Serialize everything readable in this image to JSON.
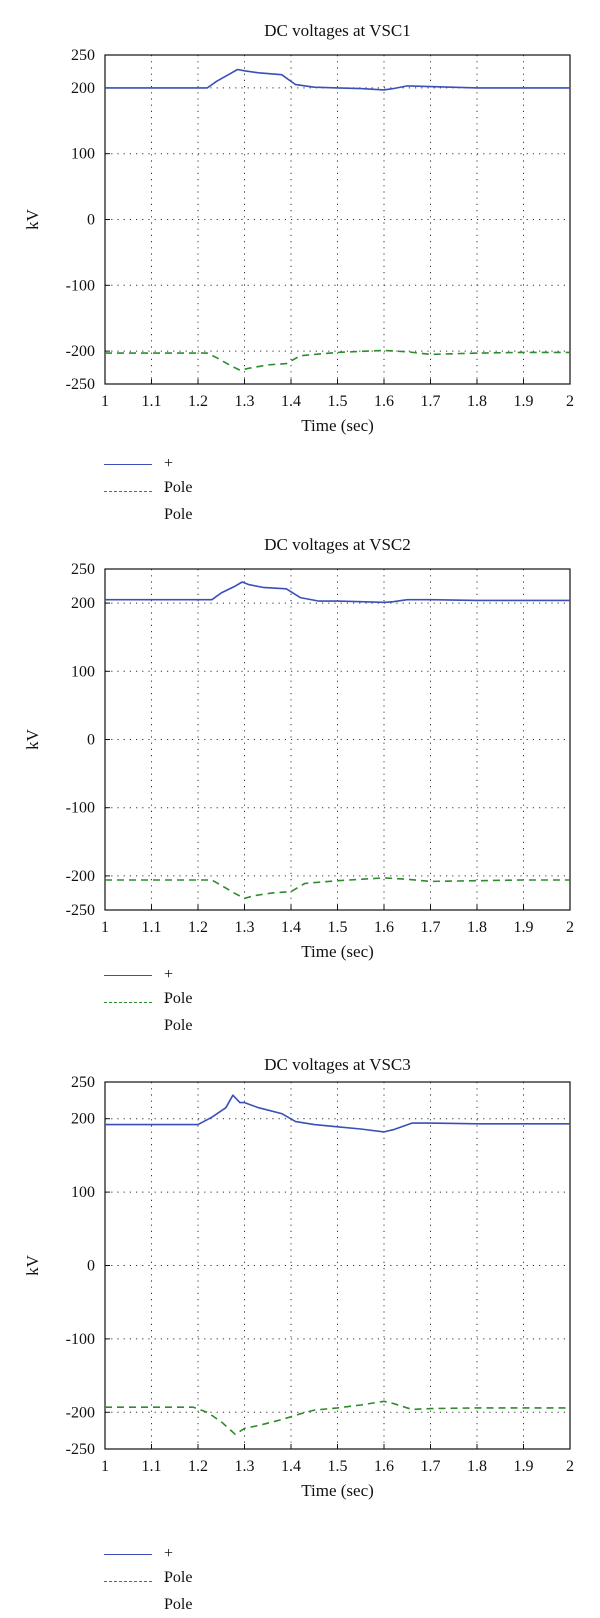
{
  "chart_data": [
    {
      "type": "line",
      "title": "DC voltages at VSC1",
      "xlabel": "Time (sec)",
      "ylabel": "kV",
      "xlim": [
        1,
        2
      ],
      "ylim": [
        -250,
        250
      ],
      "xticks": [
        "1",
        "1.1",
        "1.2",
        "1.3",
        "1.4",
        "1.5",
        "1.6",
        "1.7",
        "1.8",
        "1.9",
        "2"
      ],
      "yticks": [
        "250",
        "200",
        "100",
        "0",
        "-100",
        "-200",
        "-250"
      ],
      "grid": true,
      "legend_position": "below",
      "series": [
        {
          "name": "+ Pole",
          "color": "#3b4fb8",
          "style": "solid",
          "x": [
            1.0,
            1.22,
            1.24,
            1.27,
            1.285,
            1.3,
            1.33,
            1.38,
            1.41,
            1.45,
            1.5,
            1.55,
            1.6,
            1.62,
            1.65,
            1.7,
            1.8,
            1.9,
            2.0
          ],
          "y": [
            200,
            200,
            210,
            222,
            228,
            226,
            223,
            220,
            205,
            201,
            200,
            199,
            197,
            199,
            203,
            202,
            200,
            200,
            200
          ]
        },
        {
          "name": "- Pole",
          "color": "#2e8b2e",
          "style": "dashed",
          "x": [
            1.0,
            1.22,
            1.24,
            1.27,
            1.29,
            1.31,
            1.35,
            1.39,
            1.42,
            1.5,
            1.6,
            1.65,
            1.7,
            1.8,
            1.9,
            2.0
          ],
          "y": [
            -203,
            -203,
            -210,
            -222,
            -229,
            -226,
            -221,
            -219,
            -207,
            -202,
            -199,
            -201,
            -205,
            -203,
            -202,
            -202
          ]
        }
      ]
    },
    {
      "type": "line",
      "title": "DC voltages at VSC2",
      "xlabel": "Time (sec)",
      "ylabel": "kV",
      "xlim": [
        1,
        2
      ],
      "ylim": [
        -250,
        250
      ],
      "xticks": [
        "1",
        "1.1",
        "1.2",
        "1.3",
        "1.4",
        "1.5",
        "1.6",
        "1.7",
        "1.8",
        "1.9",
        "2"
      ],
      "yticks": [
        "250",
        "200",
        "100",
        "0",
        "-100",
        "-200",
        "-250"
      ],
      "grid": true,
      "legend_position": "below",
      "series": [
        {
          "name": "+ Pole",
          "color": "#3b4fb8",
          "style": "solid",
          "x": [
            1.0,
            1.23,
            1.25,
            1.28,
            1.295,
            1.31,
            1.34,
            1.39,
            1.42,
            1.46,
            1.5,
            1.55,
            1.6,
            1.62,
            1.65,
            1.7,
            1.8,
            1.9,
            2.0
          ],
          "y": [
            205,
            205,
            215,
            225,
            231,
            227,
            223,
            221,
            208,
            203,
            203,
            202,
            201,
            202,
            205,
            205,
            204,
            204,
            204
          ]
        },
        {
          "name": "- Pole",
          "color": "#2e8b2e",
          "style": "dashed",
          "x": [
            1.0,
            1.23,
            1.25,
            1.28,
            1.3,
            1.32,
            1.36,
            1.4,
            1.43,
            1.5,
            1.6,
            1.65,
            1.7,
            1.8,
            1.9,
            2.0
          ],
          "y": [
            -206,
            -206,
            -214,
            -226,
            -233,
            -229,
            -225,
            -223,
            -211,
            -207,
            -203,
            -205,
            -208,
            -207,
            -206,
            -206
          ]
        }
      ]
    },
    {
      "type": "line",
      "title": "DC voltages at VSC3",
      "xlabel": "Time (sec)",
      "ylabel": "kV",
      "xlim": [
        1,
        2
      ],
      "ylim": [
        -250,
        250
      ],
      "xticks": [
        "1",
        "1.1",
        "1.2",
        "1.3",
        "1.4",
        "1.5",
        "1.6",
        "1.7",
        "1.8",
        "1.9",
        "2"
      ],
      "yticks": [
        "250",
        "200",
        "100",
        "0",
        "-100",
        "-200",
        "-250"
      ],
      "grid": true,
      "legend_position": "below",
      "series": [
        {
          "name": "+ Pole",
          "color": "#3b4fb8",
          "style": "solid",
          "x": [
            1.0,
            1.2,
            1.23,
            1.26,
            1.275,
            1.29,
            1.3,
            1.33,
            1.38,
            1.41,
            1.45,
            1.5,
            1.55,
            1.6,
            1.62,
            1.66,
            1.7,
            1.8,
            1.9,
            2.0
          ],
          "y": [
            192,
            192,
            202,
            215,
            232,
            222,
            222,
            215,
            207,
            196,
            192,
            189,
            186,
            182,
            185,
            194,
            194,
            193,
            193,
            193
          ]
        },
        {
          "name": "- Pole",
          "color": "#2e8b2e",
          "style": "dashed",
          "x": [
            1.0,
            1.19,
            1.22,
            1.25,
            1.28,
            1.3,
            1.33,
            1.38,
            1.42,
            1.45,
            1.5,
            1.55,
            1.6,
            1.62,
            1.66,
            1.7,
            1.8,
            1.9,
            2.0
          ],
          "y": [
            -193,
            -193,
            -200,
            -213,
            -230,
            -222,
            -218,
            -210,
            -202,
            -197,
            -194,
            -190,
            -185,
            -188,
            -196,
            -195,
            -194,
            -194,
            -194
          ]
        }
      ]
    }
  ]
}
